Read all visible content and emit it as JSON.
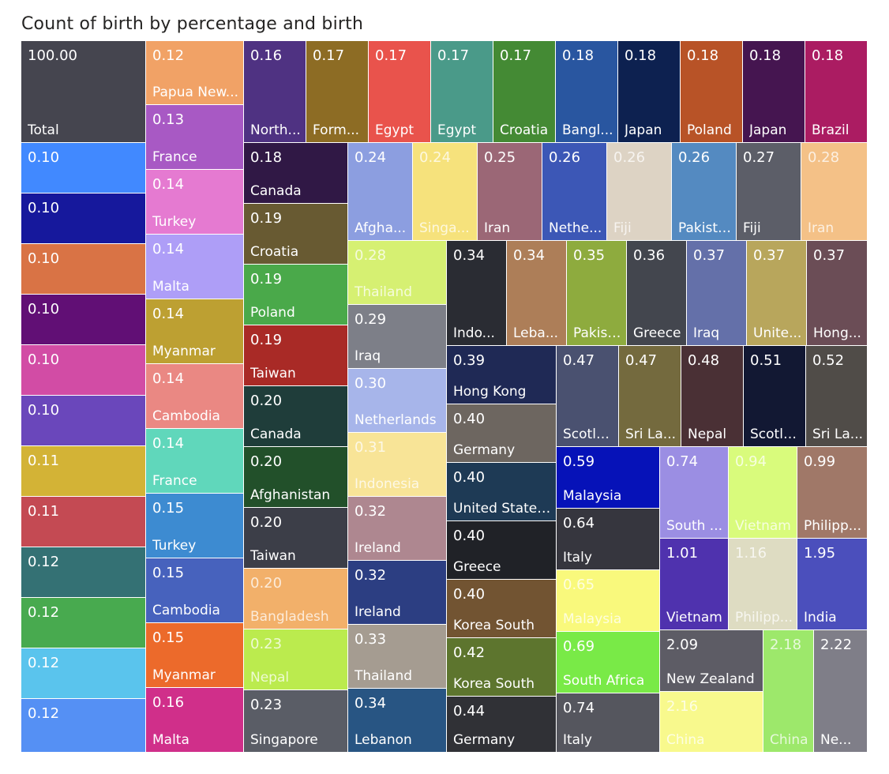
{
  "chart_data": {
    "type": "treemap",
    "title": "Count of birth by percentage and birth",
    "tiles": [
      {
        "label": "Total",
        "value": "100.00",
        "color": "#45454f"
      },
      {
        "label": "",
        "value": "0.10",
        "color": "#4189ff"
      },
      {
        "label": "",
        "value": "0.10",
        "color": "#16189c"
      },
      {
        "label": "",
        "value": "0.10",
        "color": "#d97345"
      },
      {
        "label": "",
        "value": "0.10",
        "color": "#610f75"
      },
      {
        "label": "",
        "value": "0.10",
        "color": "#d24ca5"
      },
      {
        "label": "",
        "value": "0.10",
        "color": "#6a47bb"
      },
      {
        "label": "",
        "value": "0.11",
        "color": "#d3b336"
      },
      {
        "label": "",
        "value": "0.11",
        "color": "#c44a53"
      },
      {
        "label": "",
        "value": "0.12",
        "color": "#347174"
      },
      {
        "label": "",
        "value": "0.12",
        "color": "#48aa4f"
      },
      {
        "label": "",
        "value": "0.12",
        "color": "#5ac4ed"
      },
      {
        "label": "",
        "value": "0.12",
        "color": "#5590f4"
      },
      {
        "label": "Papua New...",
        "value": "0.12",
        "color": "#f1a266"
      },
      {
        "label": "France",
        "value": "0.13",
        "color": "#a859c4"
      },
      {
        "label": "Turkey",
        "value": "0.14",
        "color": "#e57ad1"
      },
      {
        "label": "Malta",
        "value": "0.14",
        "color": "#ae9ef7"
      },
      {
        "label": "Myanmar",
        "value": "0.14",
        "color": "#bda032"
      },
      {
        "label": "Cambodia",
        "value": "0.14",
        "color": "#ea8883"
      },
      {
        "label": "France",
        "value": "0.14",
        "color": "#60d7bb"
      },
      {
        "label": "Turkey",
        "value": "0.15",
        "color": "#3d8bd1"
      },
      {
        "label": "Cambodia",
        "value": "0.15",
        "color": "#4762bd"
      },
      {
        "label": "Myanmar",
        "value": "0.15",
        "color": "#ec6a2b"
      },
      {
        "label": "Malta",
        "value": "0.16",
        "color": "#d02f8a"
      },
      {
        "label": "North...",
        "value": "0.16",
        "color": "#4f3282"
      },
      {
        "label": "Form...",
        "value": "0.17",
        "color": "#8d6c24"
      },
      {
        "label": "Egypt",
        "value": "0.17",
        "color": "#e9534c"
      },
      {
        "label": "Egypt",
        "value": "0.17",
        "color": "#4a9a89"
      },
      {
        "label": "Croatia",
        "value": "0.17",
        "color": "#448a34"
      },
      {
        "label": "Bangl...",
        "value": "0.18",
        "color": "#2956a0"
      },
      {
        "label": "Japan",
        "value": "0.18",
        "color": "#0d2150"
      },
      {
        "label": "Poland",
        "value": "0.18",
        "color": "#b85327"
      },
      {
        "label": "Japan",
        "value": "0.18",
        "color": "#451550"
      },
      {
        "label": "Brazil",
        "value": "0.18",
        "color": "#ab1c62"
      },
      {
        "label": "Canada",
        "value": "0.18",
        "color": "#301845"
      },
      {
        "label": "Croatia",
        "value": "0.19",
        "color": "#685a32"
      },
      {
        "label": "Poland",
        "value": "0.19",
        "color": "#4aa94a"
      },
      {
        "label": "Taiwan",
        "value": "0.19",
        "color": "#a92a26"
      },
      {
        "label": "Canada",
        "value": "0.20",
        "color": "#1f3d3a"
      },
      {
        "label": "Afghanistan",
        "value": "0.20",
        "color": "#22502a"
      },
      {
        "label": "Taiwan",
        "value": "0.20",
        "color": "#3c3e48"
      },
      {
        "label": "Bangladesh",
        "value": "0.20",
        "color": "#f2b06a"
      },
      {
        "label": "Nepal",
        "value": "0.23",
        "color": "#bbeb4e"
      },
      {
        "label": "Singapore",
        "value": "0.23",
        "color": "#5a5d66"
      },
      {
        "label": "Afgha...",
        "value": "0.24",
        "color": "#8c9ee0"
      },
      {
        "label": "Singa...",
        "value": "0.24",
        "color": "#f6e27c"
      },
      {
        "label": "Iran",
        "value": "0.25",
        "color": "#9b6776"
      },
      {
        "label": "Nethe...",
        "value": "0.26",
        "color": "#3c57b6"
      },
      {
        "label": "Fiji",
        "value": "0.26",
        "color": "#ddd3c4"
      },
      {
        "label": "Pakistan",
        "value": "0.26",
        "color": "#548ac1"
      },
      {
        "label": "Fiji",
        "value": "0.27",
        "color": "#5c5e68"
      },
      {
        "label": "Iran",
        "value": "0.28",
        "color": "#f4c187"
      },
      {
        "label": "Thailand",
        "value": "0.28",
        "color": "#d6f072"
      },
      {
        "label": "Iraq",
        "value": "0.29",
        "color": "#7d7f88"
      },
      {
        "label": "Netherlands",
        "value": "0.30",
        "color": "#a7b5ea"
      },
      {
        "label": "Indonesia",
        "value": "0.31",
        "color": "#f8e497"
      },
      {
        "label": "Ireland",
        "value": "0.32",
        "color": "#ae8790"
      },
      {
        "label": "Ireland",
        "value": "0.32",
        "color": "#2c3e82"
      },
      {
        "label": "Thailand",
        "value": "0.33",
        "color": "#a59c91"
      },
      {
        "label": "Lebanon",
        "value": "0.34",
        "color": "#285583"
      },
      {
        "label": "Indo...",
        "value": "0.34",
        "color": "#2a2c33"
      },
      {
        "label": "Leba...",
        "value": "0.34",
        "color": "#ad7e58"
      },
      {
        "label": "Pakist...",
        "value": "0.35",
        "color": "#8eab3e"
      },
      {
        "label": "Greece",
        "value": "0.36",
        "color": "#43464e"
      },
      {
        "label": "Iraq",
        "value": "0.37",
        "color": "#6470a9"
      },
      {
        "label": "Unite...",
        "value": "0.37",
        "color": "#b8a65c"
      },
      {
        "label": "Hong...",
        "value": "0.37",
        "color": "#6b4d56"
      },
      {
        "label": "Hong Kong",
        "value": "0.39",
        "color": "#1f2955"
      },
      {
        "label": "Germany",
        "value": "0.40",
        "color": "#6d6660"
      },
      {
        "label": "United States...",
        "value": "0.40",
        "color": "#1e3a55"
      },
      {
        "label": "Greece",
        "value": "0.40",
        "color": "#202227"
      },
      {
        "label": "Korea South",
        "value": "0.40",
        "color": "#725432"
      },
      {
        "label": "Korea South",
        "value": "0.42",
        "color": "#5d752e"
      },
      {
        "label": "Germany",
        "value": "0.44",
        "color": "#303136"
      },
      {
        "label": "Scotla...",
        "value": "0.47",
        "color": "#4a5170"
      },
      {
        "label": "Sri La...",
        "value": "0.47",
        "color": "#746a3e"
      },
      {
        "label": "Nepal",
        "value": "0.48",
        "color": "#4a3035"
      },
      {
        "label": "Scotla...",
        "value": "0.51",
        "color": "#121833"
      },
      {
        "label": "Sri La...",
        "value": "0.52",
        "color": "#504c48"
      },
      {
        "label": "Malaysia",
        "value": "0.59",
        "color": "#0612b8"
      },
      {
        "label": "Italy",
        "value": "0.64",
        "color": "#36363e"
      },
      {
        "label": "Malaysia",
        "value": "0.65",
        "color": "#f9f97c"
      },
      {
        "label": "South Africa",
        "value": "0.69",
        "color": "#79ea47"
      },
      {
        "label": "Italy",
        "value": "0.74",
        "color": "#55565e"
      },
      {
        "label": "South ...",
        "value": "0.74",
        "color": "#9b8ee3"
      },
      {
        "label": "Vietnam",
        "value": "0.94",
        "color": "#d9fb7c"
      },
      {
        "label": "Philipp...",
        "value": "0.99",
        "color": "#a07868"
      },
      {
        "label": "Vietnam",
        "value": "1.01",
        "color": "#4f32ae"
      },
      {
        "label": "Philipp...",
        "value": "1.16",
        "color": "#dedcc2"
      },
      {
        "label": "India",
        "value": "1.95",
        "color": "#4b4fbc"
      },
      {
        "label": "New Zealand",
        "value": "2.09",
        "color": "#5d5c65"
      },
      {
        "label": "China",
        "value": "2.16",
        "color": "#f8f98d"
      },
      {
        "label": "China",
        "value": "2.18",
        "color": "#9de86b"
      },
      {
        "label": "Ne...",
        "value": "2.22",
        "color": "#7f7e88"
      }
    ]
  }
}
